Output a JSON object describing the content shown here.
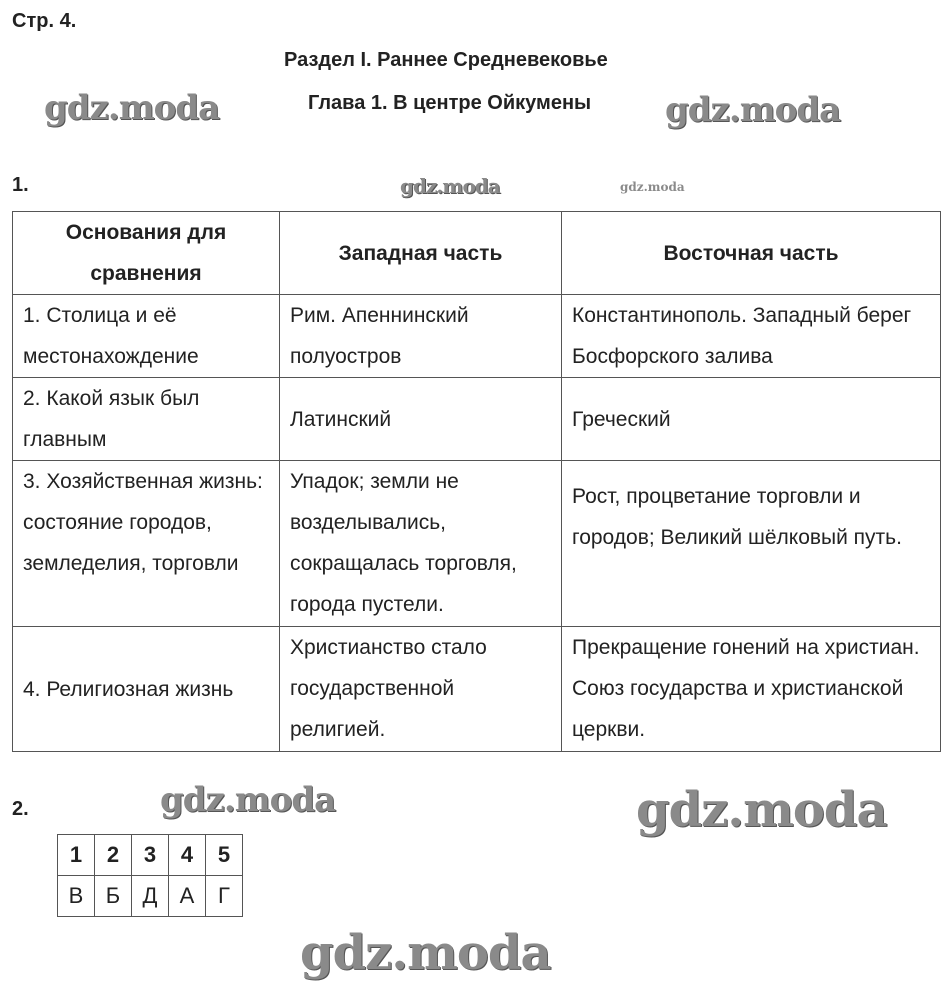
{
  "page_label": "Стр. 4.",
  "section_title": "Раздел I. Раннее Средневековье",
  "chapter_title": "Глава 1. В центре Ойкумены",
  "task1": {
    "number": "1.",
    "headers": [
      "Основания для сравнения",
      "Западная часть",
      "Восточная часть"
    ],
    "rows": [
      [
        "1. Столица и её местонахождение",
        "Рим. Апеннинский полуостров",
        "Константинополь. Западный берег Босфорского залива"
      ],
      [
        "2. Какой язык был главным",
        "Латинский",
        "Греческий"
      ],
      [
        "3. Хозяйственная жизнь: состояние городов, земледелия, торговли",
        "Упадок; земли не возделывались, сокращалась торговля, города пустели.",
        "Рост, процветание торговли и городов; Великий шёлковый путь."
      ],
      [
        "4. Религиозная жизнь",
        "Христианство стало государственной религией.",
        "Прекращение гонений на христиан. Союз государства и христианской церкви."
      ]
    ]
  },
  "task2": {
    "number": "2.",
    "numbers": [
      "1",
      "2",
      "3",
      "4",
      "5"
    ],
    "answers": [
      "В",
      "Б",
      "Д",
      "А",
      "Г"
    ]
  },
  "watermark": "gdz.moda"
}
